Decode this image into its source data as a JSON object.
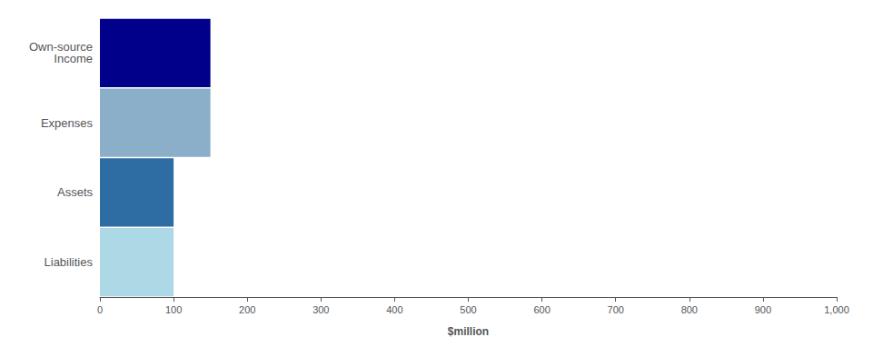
{
  "chart_data": {
    "type": "bar",
    "orientation": "horizontal",
    "categories": [
      "Own-source\nIncome",
      "Expenses",
      "Assets",
      "Liabilities"
    ],
    "values": [
      150,
      150,
      100,
      100
    ],
    "colors": [
      "#00008B",
      "#8BAFC8",
      "#2E6DA4",
      "#ADD8E6"
    ],
    "xlabel": "$million",
    "xlim": [
      0,
      1000
    ],
    "xticks": [
      0,
      100,
      200,
      300,
      400,
      500,
      600,
      700,
      800,
      900,
      {
        "value": 1000,
        "label": "1,000"
      }
    ],
    "grid": false
  }
}
